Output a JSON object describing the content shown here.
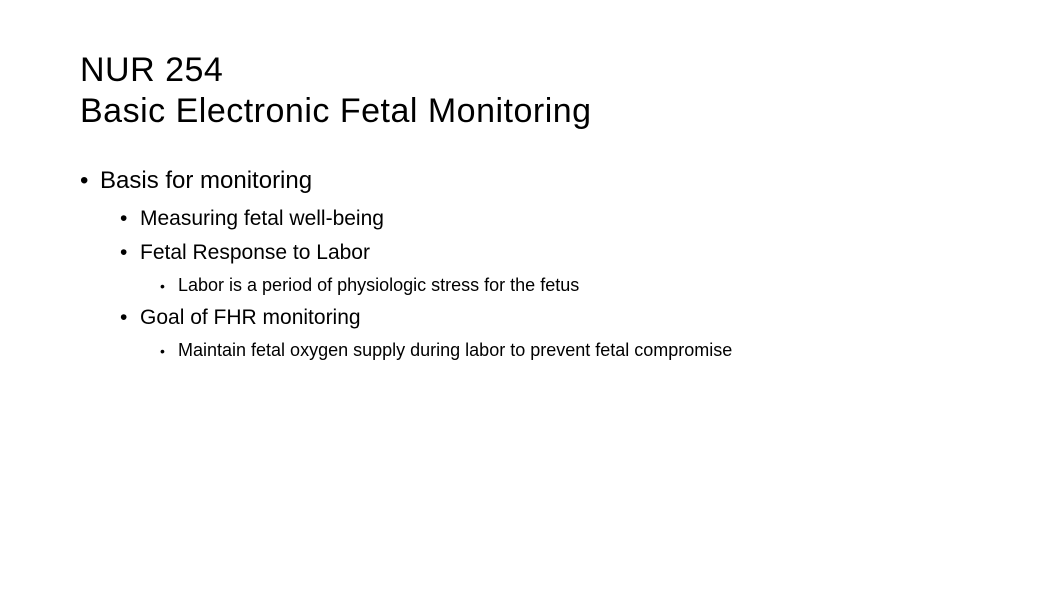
{
  "title": {
    "line1": "NUR 254",
    "line2": "Basic Electronic Fetal Monitoring"
  },
  "content": {
    "item1": {
      "label": "Basis for monitoring",
      "sub1": {
        "label": "Measuring fetal well-being"
      },
      "sub2": {
        "label": "Fetal Response to Labor",
        "detail1": "Labor is a period of physiologic stress for the fetus"
      },
      "sub3": {
        "label": "Goal of FHR monitoring",
        "detail1": "Maintain fetal oxygen supply during labor to prevent fetal compromise"
      }
    }
  },
  "styling": {
    "background_color": "#ffffff",
    "text_color": "#000000",
    "title_fontsize": 34,
    "level1_fontsize": 24,
    "level2_fontsize": 21,
    "level3_fontsize": 18,
    "font_family": "Segoe UI"
  }
}
